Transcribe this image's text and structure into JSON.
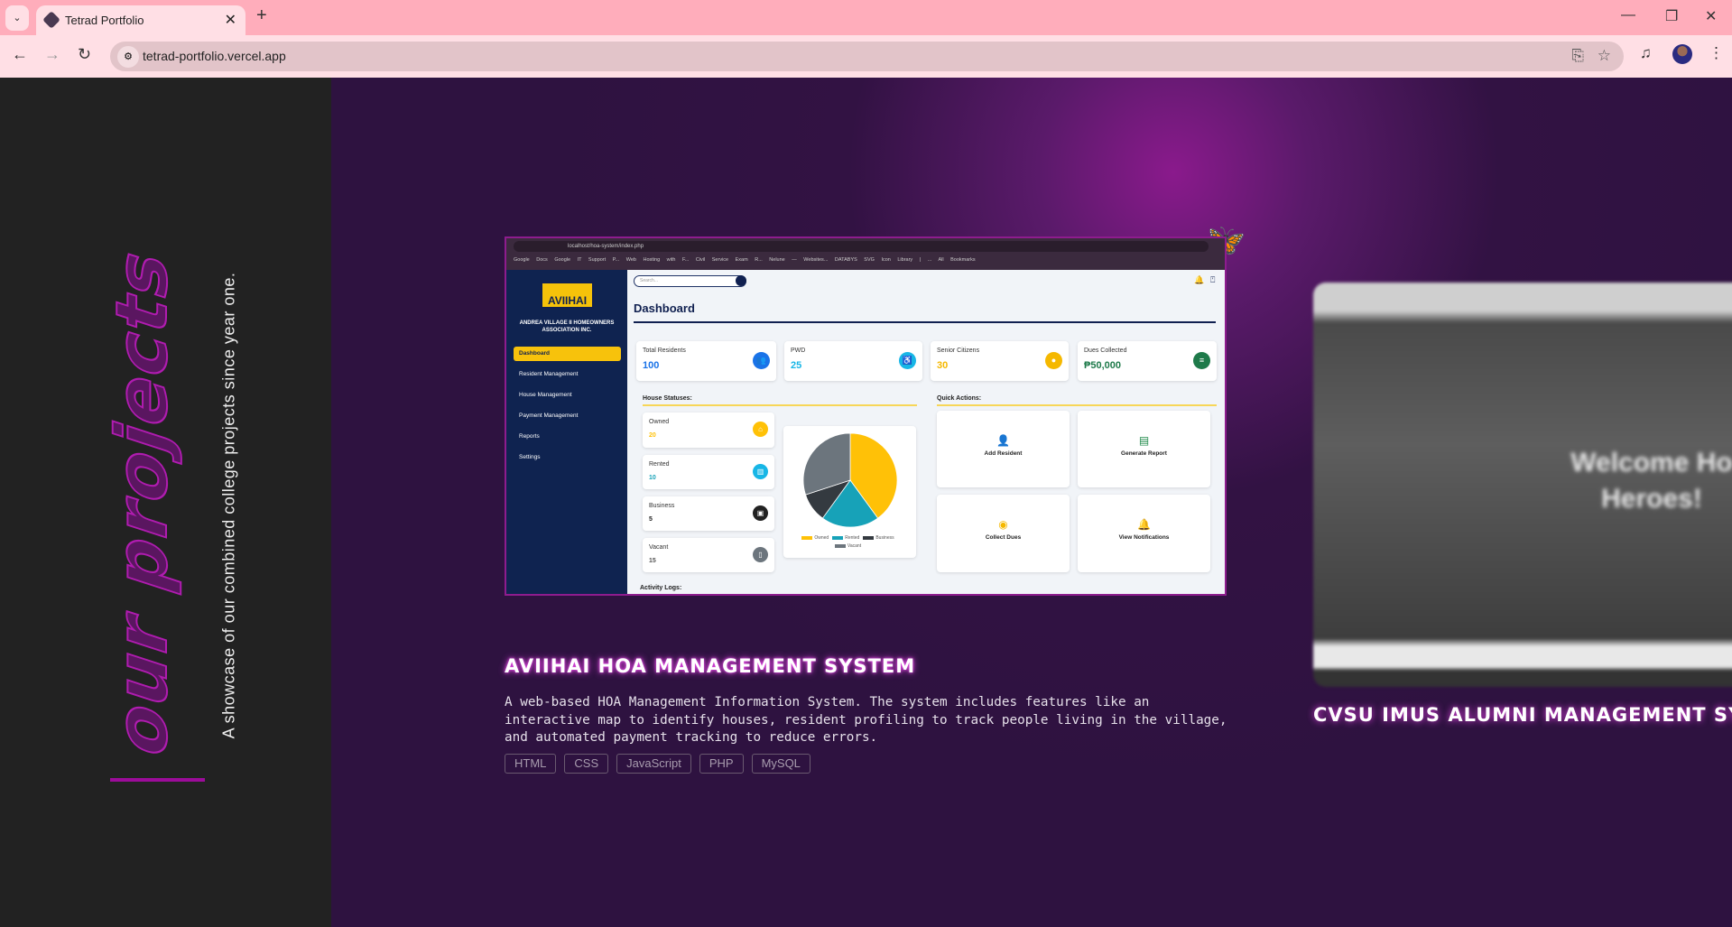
{
  "browser": {
    "tab_title": "Tetrad Portfolio",
    "url": "tetrad-portfolio.vercel.app"
  },
  "hero": {
    "title": "our projects",
    "subtitle": "A showcase of our combined college projects since year one."
  },
  "projects": [
    {
      "title": "AVIIHAI HOA MANAGEMENT SYSTEM",
      "description": "A web-based HOA Management Information System. The system includes features like an interactive map to identify houses, resident profiling to track people living in the village, and automated payment tracking to reduce errors.",
      "tags": [
        "HTML",
        "CSS",
        "JavaScript",
        "PHP",
        "MySQL"
      ],
      "preview": {
        "url": "localhost/hoa-system/index.php",
        "bookmarks": "Google Docs  Google IT Support P...  Web Hosting with F...  Civil Service Exam R...  Nelune — Websites...  DATABYS  SVG Icon Library | ...  All Bookmarks",
        "logo_text": "AVIIHAI",
        "org_name": "ANDREA VILLAGE II HOMEOWNERS ASSOCIATION INC.",
        "menu": [
          "Dashboard",
          "Resident Management",
          "House Management",
          "Payment Management",
          "Reports",
          "Settings"
        ],
        "search_placeholder": "Search...",
        "page_title": "Dashboard",
        "stats": [
          {
            "label": "Total Residents",
            "value": "100",
            "color": "#1a73e8"
          },
          {
            "label": "PWD",
            "value": "25",
            "color": "#17b6e6"
          },
          {
            "label": "Senior Citizens",
            "value": "30",
            "color": "#f5b800"
          },
          {
            "label": "Dues Collected",
            "value": "₱50,000",
            "color": "#1e7a4a"
          }
        ],
        "house_statuses_label": "House Statuses:",
        "house_statuses": [
          {
            "label": "Owned",
            "value": 20,
            "color": "#ffc107"
          },
          {
            "label": "Rented",
            "value": 10,
            "color": "#17a2b8"
          },
          {
            "label": "Business",
            "value": 5,
            "color": "#343a40"
          },
          {
            "label": "Vacant",
            "value": 15,
            "color": "#6c757d"
          }
        ],
        "quick_actions_label": "Quick Actions:",
        "quick_actions": [
          "Add Resident",
          "Generate Report",
          "Collect Dues",
          "View Notifications"
        ],
        "activity_logs_label": "Activity Logs:"
      }
    },
    {
      "title": "CVSU IMUS ALUMNI MANAGEMENT SYST",
      "preview_text": "Welcome Ho Heroes!"
    }
  ]
}
